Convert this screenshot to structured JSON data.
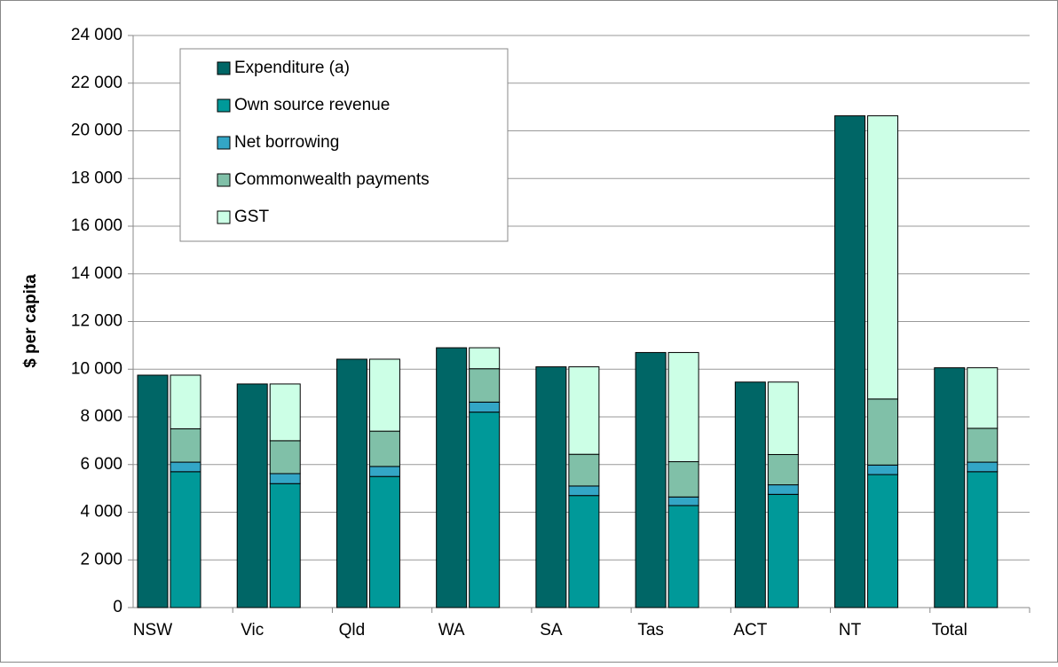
{
  "chart_data": {
    "type": "bar",
    "y_label": "$ per capita",
    "categories": [
      "NSW",
      "Vic",
      "Qld",
      "WA",
      "SA",
      "Tas",
      "ACT",
      "NT",
      "Total"
    ],
    "series": [
      {
        "name": "Expenditure (a)",
        "color": "#006666",
        "values": [
          9750,
          9380,
          10420,
          10900,
          10100,
          10700,
          9460,
          20630,
          10060
        ]
      },
      {
        "name": "Own source revenue",
        "color": "#009999",
        "values": [
          5700,
          5200,
          5500,
          8200,
          4700,
          4280,
          4750,
          5580,
          5700
        ]
      },
      {
        "name": "Net borrowing",
        "color": "#33a6c6",
        "values": [
          400,
          420,
          420,
          420,
          400,
          360,
          400,
          400,
          400
        ]
      },
      {
        "name": "Commonwealth payments",
        "color": "#80c0a8",
        "values": [
          1400,
          1380,
          1480,
          1400,
          1330,
          1480,
          1270,
          2770,
          1420
        ]
      },
      {
        "name": "GST",
        "color": "#ccffe6",
        "values": [
          2250,
          2380,
          3020,
          880,
          3670,
          4580,
          3040,
          11880,
          2540
        ]
      }
    ],
    "ylim": [
      0,
      24000
    ],
    "yticks": [
      0,
      {
        "value": 2000,
        "label": "2 000"
      },
      {
        "value": 4000,
        "label": "4 000"
      },
      {
        "value": 6000,
        "label": "6 000"
      },
      {
        "value": 8000,
        "label": "8 000"
      },
      {
        "value": 10000,
        "label": "10 000"
      },
      {
        "value": 12000,
        "label": "12 000"
      },
      {
        "value": 14000,
        "label": "14 000"
      },
      {
        "value": 16000,
        "label": "16 000"
      },
      {
        "value": 18000,
        "label": "18 000"
      },
      {
        "value": 20000,
        "label": "20 000"
      },
      {
        "value": 22000,
        "label": "22 000"
      },
      {
        "value": 24000,
        "label": "24 000"
      }
    ],
    "grid": true,
    "legend": "upper-left"
  }
}
